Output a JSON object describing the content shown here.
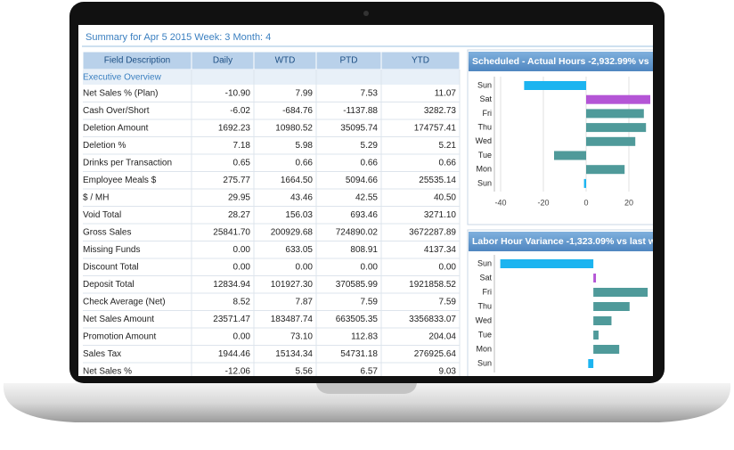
{
  "header": {
    "title": "Summary for Apr 5 2015  Week: 3  Month: 4"
  },
  "table": {
    "columns": [
      "Field Description",
      "Daily",
      "WTD",
      "PTD",
      "YTD"
    ],
    "section": "Executive Overview",
    "rows": [
      [
        "Net Sales % (Plan)",
        "-10.90",
        "7.99",
        "7.53",
        "11.07"
      ],
      [
        "Cash Over/Short",
        "-6.02",
        "-684.76",
        "-1137.88",
        "3282.73"
      ],
      [
        "Deletion Amount",
        "1692.23",
        "10980.52",
        "35095.74",
        "174757.41"
      ],
      [
        "Deletion %",
        "7.18",
        "5.98",
        "5.29",
        "5.21"
      ],
      [
        "Drinks per Transaction",
        "0.65",
        "0.66",
        "0.66",
        "0.66"
      ],
      [
        "Employee Meals $",
        "275.77",
        "1664.50",
        "5094.66",
        "25535.14"
      ],
      [
        "$ / MH",
        "29.95",
        "43.46",
        "42.55",
        "40.50"
      ],
      [
        "Void Total",
        "28.27",
        "156.03",
        "693.46",
        "3271.10"
      ],
      [
        "Gross Sales",
        "25841.70",
        "200929.68",
        "724890.02",
        "3672287.89"
      ],
      [
        "Missing Funds",
        "0.00",
        "633.05",
        "808.91",
        "4137.34"
      ],
      [
        "Discount Total",
        "0.00",
        "0.00",
        "0.00",
        "0.00"
      ],
      [
        "Deposit Total",
        "12834.94",
        "101927.30",
        "370585.99",
        "1921858.52"
      ],
      [
        "Check Average (Net)",
        "8.52",
        "7.87",
        "7.59",
        "7.59"
      ],
      [
        "Net Sales Amount",
        "23571.47",
        "183487.74",
        "663505.35",
        "3356833.07"
      ],
      [
        "Promotion Amount",
        "0.00",
        "73.10",
        "112.83",
        "204.04"
      ],
      [
        "Sales Tax",
        "1944.46",
        "15134.34",
        "54731.18",
        "276925.64"
      ],
      [
        "Net Sales %",
        "-12.06",
        "5.56",
        "6.57",
        "9.03"
      ]
    ]
  },
  "chart_data": [
    {
      "type": "bar",
      "orientation": "horizontal",
      "title": "Scheduled - Actual Hours -2,932.99% vs",
      "categories": [
        "Sun",
        "Sat",
        "Fri",
        "Thu",
        "Wed",
        "Tue",
        "Mon",
        "Sun"
      ],
      "values": [
        -29,
        30,
        27,
        28,
        23,
        -15,
        18,
        -1
      ],
      "colors": [
        "#1cb4f0",
        "#b455d6",
        "#4f9a9a",
        "#4f9a9a",
        "#4f9a9a",
        "#4f9a9a",
        "#4f9a9a",
        "#1cb4f0"
      ],
      "xlim": [
        -45,
        30
      ],
      "xticks": [
        -40,
        -20,
        0,
        20
      ]
    },
    {
      "type": "bar",
      "orientation": "horizontal",
      "title": "Labor Hour Variance -1,323.09% vs last w",
      "categories": [
        "Sun",
        "Sat",
        "Fri",
        "Thu",
        "Wed",
        "Tue",
        "Mon",
        "Sun"
      ],
      "values": [
        -36,
        1,
        21,
        14,
        7,
        2,
        10,
        -2
      ],
      "colors": [
        "#1cb4f0",
        "#b455d6",
        "#4f9a9a",
        "#4f9a9a",
        "#4f9a9a",
        "#4f9a9a",
        "#4f9a9a",
        "#1cb4f0"
      ],
      "xlim": [
        -40,
        22
      ]
    }
  ]
}
